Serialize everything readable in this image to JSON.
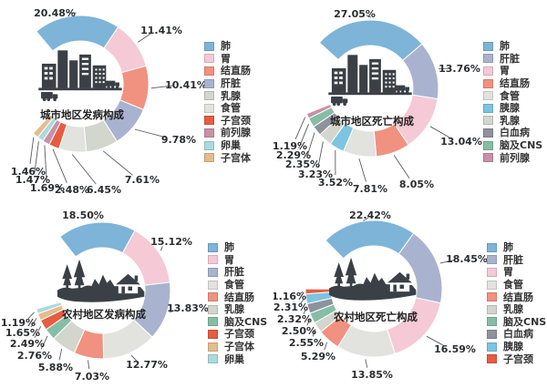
{
  "page": {
    "background": "#ffffff"
  },
  "chart_data": [
    {
      "type": "donut",
      "title": "城市地区发病构成",
      "center_icon": "city-icon",
      "legend_position": "right",
      "value_unit": "%",
      "categories": [
        "肺",
        "胃",
        "结直肠",
        "肝脏",
        "乳腺",
        "食管",
        "子宫颈",
        "前列腺",
        "卵巢",
        "子宫体"
      ],
      "values": [
        20.48,
        11.41,
        10.41,
        9.78,
        7.61,
        6.45,
        2.48,
        1.69,
        1.47,
        1.46
      ],
      "labels": [
        "20.48%",
        "11.41%",
        "10.41%",
        "9.78%",
        "7.61%",
        "6.45%",
        "2.48%",
        "1.69%",
        "1.47%",
        "1.46%"
      ],
      "colors": [
        "#7db4d8",
        "#f5c9d6",
        "#f19180",
        "#a9b3d0",
        "#d3d6cc",
        "#e2e3df",
        "#e65c41",
        "#c791a7",
        "#abdade",
        "#e2bd8e"
      ]
    },
    {
      "type": "donut",
      "title": "城市地区死亡构成",
      "center_icon": "city-icon",
      "legend_position": "right",
      "value_unit": "%",
      "categories": [
        "肺",
        "肝脏",
        "胃",
        "结直肠",
        "食管",
        "胰腺",
        "乳腺",
        "白血病",
        "脑及CNS",
        "前列腺"
      ],
      "values": [
        27.05,
        13.76,
        13.04,
        8.05,
        7.81,
        3.52,
        3.23,
        2.35,
        2.29,
        1.19
      ],
      "labels": [
        "27.05%",
        "13.76%",
        "13.04%",
        "8.05%",
        "7.81%",
        "3.52%",
        "3.23%",
        "2.35%",
        "2.29%",
        "1.19%"
      ],
      "colors": [
        "#7db4d8",
        "#a9b3d0",
        "#f5c9d6",
        "#f19180",
        "#e2e3df",
        "#7cc4e2",
        "#d3d6cc",
        "#8d929b",
        "#86bda6",
        "#c791a7"
      ]
    },
    {
      "type": "donut",
      "title": "农村地区发病构成",
      "center_icon": "village-icon",
      "legend_position": "right",
      "value_unit": "%",
      "categories": [
        "肺",
        "胃",
        "肝脏",
        "食管",
        "结直肠",
        "乳腺",
        "脑及CNS",
        "子宫颈",
        "子宫体",
        "卵巢"
      ],
      "values": [
        18.5,
        15.12,
        13.83,
        12.77,
        7.03,
        5.88,
        2.76,
        2.49,
        1.65,
        1.19
      ],
      "labels": [
        "18.50%",
        "15.12%",
        "13.83%",
        "12.77%",
        "7.03%",
        "5.88%",
        "2.76%",
        "2.49%",
        "1.65%",
        "1.19%"
      ],
      "colors": [
        "#7db4d8",
        "#f5c9d6",
        "#a9b3d0",
        "#e2e3df",
        "#f19180",
        "#d3d6cc",
        "#86bda6",
        "#e65c41",
        "#e2bd8e",
        "#abdade"
      ]
    },
    {
      "type": "donut",
      "title": "农村地区死亡构成",
      "center_icon": "village-icon",
      "legend_position": "right",
      "value_unit": "%",
      "categories": [
        "肺",
        "肝脏",
        "胃",
        "食管",
        "结直肠",
        "乳腺",
        "脑及CNS",
        "白血病",
        "胰腺",
        "子宫颈"
      ],
      "values": [
        22.42,
        18.45,
        16.59,
        13.85,
        5.29,
        2.55,
        2.5,
        2.32,
        2.31,
        1.16
      ],
      "labels": [
        "22.42%",
        "18.45%",
        "16.59%",
        "13.85%",
        "5.29%",
        "2.55%",
        "2.50%",
        "2.32%",
        "2.31%",
        "1.16%"
      ],
      "colors": [
        "#7db4d8",
        "#a9b3d0",
        "#f5c9d6",
        "#e2e3df",
        "#f19180",
        "#d3d6cc",
        "#86bda6",
        "#8d929b",
        "#7cc4e2",
        "#e65c41"
      ]
    }
  ]
}
